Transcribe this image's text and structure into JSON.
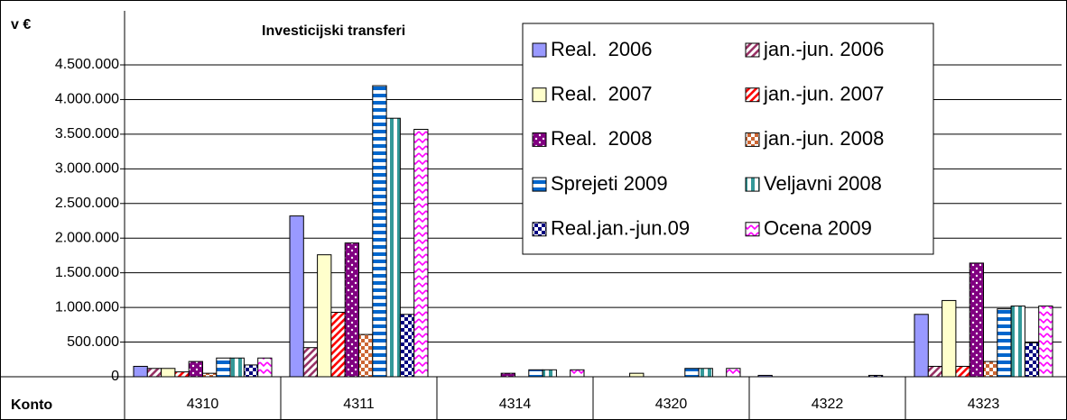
{
  "chart_data": {
    "type": "bar",
    "title": "Investicijski transferi",
    "y_unit": "v €",
    "x_label": "Konto",
    "categories": [
      "4310",
      "4311",
      "4314",
      "4320",
      "4322",
      "4323"
    ],
    "ylim": [
      0,
      4500000
    ],
    "yticks": [
      {
        "value": 0,
        "label": "0"
      },
      {
        "value": 500000,
        "label": "500.000"
      },
      {
        "value": 1000000,
        "label": "1.000.000"
      },
      {
        "value": 1500000,
        "label": "1.500.000"
      },
      {
        "value": 2000000,
        "label": "2.000.000"
      },
      {
        "value": 2500000,
        "label": "2.500.000"
      },
      {
        "value": 3000000,
        "label": "3.000.000"
      },
      {
        "value": 3500000,
        "label": "3.500.000"
      },
      {
        "value": 4000000,
        "label": "4.000.000"
      },
      {
        "value": 4500000,
        "label": "4.500.000"
      }
    ],
    "grid": true,
    "legend": "top-right",
    "series": [
      {
        "name": "Real.  2006",
        "color": "#9999ff",
        "pattern": "solid",
        "values": [
          150000,
          2320000,
          0,
          0,
          20000,
          900000
        ]
      },
      {
        "name": "jan.-jun. 2006",
        "color": "#993366",
        "pattern": "diagonal",
        "values": [
          120000,
          420000,
          0,
          0,
          0,
          150000
        ]
      },
      {
        "name": "Real.  2007",
        "color": "#ffffcc",
        "pattern": "solid",
        "values": [
          120000,
          1760000,
          0,
          50000,
          0,
          1100000
        ]
      },
      {
        "name": "jan.-jun. 2007",
        "color": "#ff0000",
        "pattern": "diagonal",
        "values": [
          70000,
          930000,
          0,
          0,
          0,
          150000
        ]
      },
      {
        "name": "Real.  2008",
        "color": "#800080",
        "pattern": "dots",
        "values": [
          220000,
          1930000,
          50000,
          0,
          0,
          1640000
        ]
      },
      {
        "name": "jan.-jun. 2008",
        "color": "#cc6633",
        "pattern": "checker",
        "values": [
          50000,
          610000,
          0,
          0,
          0,
          220000
        ]
      },
      {
        "name": "Sprejeti 2009",
        "color": "#0066cc",
        "pattern": "hstripes",
        "values": [
          270000,
          4200000,
          100000,
          120000,
          0,
          980000
        ]
      },
      {
        "name": "Veljavni 2008",
        "color": "#339999",
        "pattern": "vstripes",
        "values": [
          270000,
          3730000,
          100000,
          120000,
          0,
          1020000
        ]
      },
      {
        "name": "Real.jan.-jun.09",
        "color": "#000080",
        "pattern": "checker",
        "values": [
          170000,
          900000,
          0,
          0,
          20000,
          490000
        ]
      },
      {
        "name": "Ocena 2009",
        "color": "#ff00ff",
        "pattern": "zigzag",
        "values": [
          270000,
          3570000,
          100000,
          120000,
          0,
          1020000
        ]
      }
    ]
  }
}
